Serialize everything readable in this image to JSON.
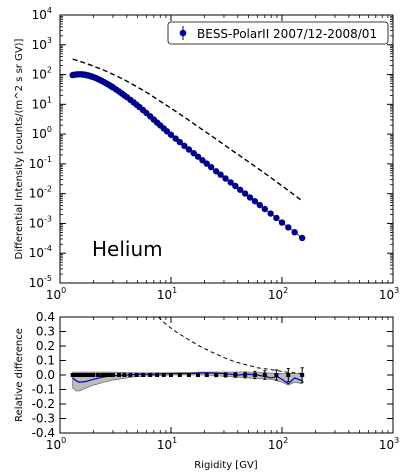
{
  "chart_data": [
    {
      "type": "scatter",
      "xlabel": "",
      "ylabel": "Differential Intensity [counts/(m^2 s sr GV)]",
      "xscale": "log",
      "yscale": "log",
      "xlim": [
        1,
        1000
      ],
      "ylim": [
        1e-05,
        10000
      ],
      "x_ticks": [
        {
          "base": "10",
          "exp": "0"
        },
        {
          "base": "10",
          "exp": "1"
        },
        {
          "base": "10",
          "exp": "2"
        },
        {
          "base": "10",
          "exp": "3"
        }
      ],
      "y_ticks": [
        {
          "base": "10",
          "exp": "-5"
        },
        {
          "base": "10",
          "exp": "-4"
        },
        {
          "base": "10",
          "exp": "-3"
        },
        {
          "base": "10",
          "exp": "-2"
        },
        {
          "base": "10",
          "exp": "-1"
        },
        {
          "base": "10",
          "exp": "0"
        },
        {
          "base": "10",
          "exp": "1"
        },
        {
          "base": "10",
          "exp": "2"
        },
        {
          "base": "10",
          "exp": "3"
        },
        {
          "base": "10",
          "exp": "4"
        }
      ],
      "annotation": "Helium",
      "legend": {
        "position": "top-right",
        "entries": [
          "BESS-PolarII 2007/12-2008/01"
        ]
      },
      "series": [
        {
          "name": "BESS-PolarII 2007/12-2008/01",
          "color": "#00008b",
          "x": [
            1.3,
            1.35,
            1.4,
            1.45,
            1.5,
            1.55,
            1.6,
            1.65,
            1.7,
            1.75,
            1.8,
            1.85,
            1.9,
            1.95,
            2.0,
            2.1,
            2.2,
            2.3,
            2.4,
            2.5,
            2.6,
            2.7,
            2.8,
            2.9,
            3.0,
            3.2,
            3.4,
            3.6,
            3.8,
            4.0,
            4.3,
            4.6,
            4.9,
            5.2,
            5.6,
            6.0,
            6.5,
            7.0,
            7.5,
            8.0,
            8.6,
            9.2,
            10,
            11,
            12,
            13.2,
            14.5,
            16,
            17.5,
            19.2,
            21,
            23,
            25.5,
            28,
            31,
            34.5,
            38,
            42,
            46.5,
            51.5,
            57,
            63,
            70,
            79,
            89,
            100,
            114,
            130,
            152
          ],
          "y": [
            96,
            99,
            101,
            102,
            102,
            102,
            101,
            99.5,
            97.5,
            95.3,
            93,
            90.3,
            87.6,
            84.8,
            82,
            76.4,
            70.8,
            65.4,
            60.4,
            55.6,
            51.2,
            47.2,
            43.6,
            40.2,
            37.1,
            31.6,
            27.0,
            23.2,
            20.0,
            17.4,
            14.2,
            11.7,
            9.68,
            8.08,
            6.4,
            5.13,
            3.94,
            3.08,
            2.44,
            1.96,
            1.55,
            1.24,
            0.952,
            0.709,
            0.54,
            0.404,
            0.304,
            0.229,
            0.175,
            0.133,
            0.102,
            0.0776,
            0.0565,
            0.0433,
            0.0323,
            0.0239,
            0.0181,
            0.0135,
            0.0101,
            0.00745,
            0.0056,
            0.00415,
            0.00305,
            0.00215,
            0.00153,
            0.00107,
            0.000737,
            0.000507,
            0.000325
          ]
        },
        {
          "style": "dashed",
          "color": "#000000",
          "x": [
            1.3,
            1.5,
            1.7,
            2.0,
            2.4,
            2.8,
            3.3,
            3.9,
            4.6,
            5.4,
            6.4,
            7.6,
            9.0,
            10.6,
            12.5,
            15,
            18,
            22,
            27,
            33,
            40,
            50,
            60,
            75,
            90,
            110,
            130,
            152
          ],
          "y": [
            330,
            280,
            240,
            192,
            148,
            115,
            86,
            63,
            45,
            32,
            22,
            14.2,
            9.6,
            6.4,
            4.25,
            2.67,
            1.66,
            0.994,
            0.585,
            0.343,
            0.209,
            0.117,
            0.0727,
            0.0402,
            0.0244,
            0.0141,
            0.00889,
            0.0057
          ]
        }
      ]
    },
    {
      "type": "line",
      "xlabel": "Rigidity [GV]",
      "ylabel": "Relative difference",
      "xscale": "log",
      "xlim": [
        1,
        1000
      ],
      "ylim": [
        -0.4,
        0.4
      ],
      "x_ticks": [
        {
          "base": "10",
          "exp": "0"
        },
        {
          "base": "10",
          "exp": "1"
        },
        {
          "base": "10",
          "exp": "2"
        },
        {
          "base": "10",
          "exp": "3"
        }
      ],
      "y_ticks": [
        "-0.4",
        "-0.3",
        "-0.2",
        "-0.1",
        "0.0",
        "0.1",
        "0.2",
        "0.3",
        "0.4"
      ],
      "series": [
        {
          "style": "dashed",
          "color": "#000000",
          "x": [
            7.7,
            9,
            11,
            14,
            18,
            23,
            30,
            38,
            48,
            60,
            75,
            90,
            110,
            130,
            152
          ],
          "y": [
            0.4,
            0.35,
            0.3,
            0.25,
            0.2,
            0.16,
            0.12,
            0.09,
            0.07,
            0.05,
            0.04,
            0.03,
            0.02,
            0.015,
            0.01
          ]
        },
        {
          "style": "solid",
          "color": "#0000cd",
          "x": [
            1.3,
            1.4,
            1.5,
            1.7,
            2,
            2.4,
            3,
            4,
            5,
            7,
            10,
            15,
            20,
            30,
            40,
            50,
            60,
            70,
            80,
            90,
            100,
            114,
            130,
            152
          ],
          "y": [
            -0.02,
            -0.04,
            -0.05,
            -0.045,
            -0.03,
            -0.015,
            -0.005,
            0,
            0.005,
            0.005,
            0.01,
            0.01,
            0.015,
            0.01,
            0.0,
            0.005,
            0.0,
            -0.01,
            -0.02,
            -0.01,
            -0.03,
            -0.06,
            -0.02,
            -0.04
          ]
        },
        {
          "name": "band-upper",
          "x": [
            1.3,
            1.5,
            2,
            3,
            5,
            10,
            20,
            50,
            100,
            152
          ],
          "y": [
            0.02,
            0.02,
            0.02,
            0.02,
            0.015,
            0.015,
            0.02,
            0.02,
            0.01,
            0.01
          ]
        },
        {
          "name": "band-lower",
          "x": [
            1.3,
            1.4,
            1.5,
            1.7,
            2,
            2.5,
            3,
            4,
            5,
            10,
            20,
            50,
            80,
            100,
            114,
            130,
            152
          ],
          "y": [
            -0.09,
            -0.11,
            -0.11,
            -0.09,
            -0.07,
            -0.05,
            -0.035,
            -0.02,
            -0.01,
            0,
            0,
            -0.02,
            -0.03,
            -0.05,
            -0.07,
            -0.05,
            -0.06
          ]
        },
        {
          "name": "points",
          "x": [
            1.3,
            1.35,
            1.4,
            1.45,
            1.5,
            1.55,
            1.6,
            1.65,
            1.7,
            1.75,
            1.8,
            1.9,
            2.0,
            2.2,
            2.4,
            2.6,
            2.8,
            3.0,
            3.4,
            3.8,
            4.3,
            4.9,
            5.6,
            6.5,
            7.5,
            8.6,
            10,
            12,
            14.5,
            17.5,
            21,
            25.5,
            31,
            38,
            46.5,
            57,
            70,
            89,
            114,
            152
          ],
          "y": [
            0,
            0,
            0,
            0,
            0,
            0,
            0,
            0,
            0,
            0,
            0,
            0,
            0,
            0,
            0,
            0,
            0,
            0,
            0,
            0,
            0,
            0,
            0,
            0,
            0,
            0,
            0,
            0,
            0,
            0,
            0,
            0,
            0,
            0,
            0,
            0,
            0,
            0,
            0,
            0
          ],
          "err": [
            0.005,
            0.005,
            0.005,
            0.005,
            0.005,
            0.005,
            0.005,
            0.005,
            0.005,
            0.005,
            0.005,
            0.005,
            0.005,
            0.005,
            0.005,
            0.005,
            0.005,
            0.005,
            0.005,
            0.005,
            0.005,
            0.005,
            0.005,
            0.005,
            0.005,
            0.005,
            0.006,
            0.007,
            0.008,
            0.009,
            0.01,
            0.012,
            0.014,
            0.016,
            0.02,
            0.025,
            0.03,
            0.035,
            0.045,
            0.05
          ]
        }
      ]
    }
  ]
}
